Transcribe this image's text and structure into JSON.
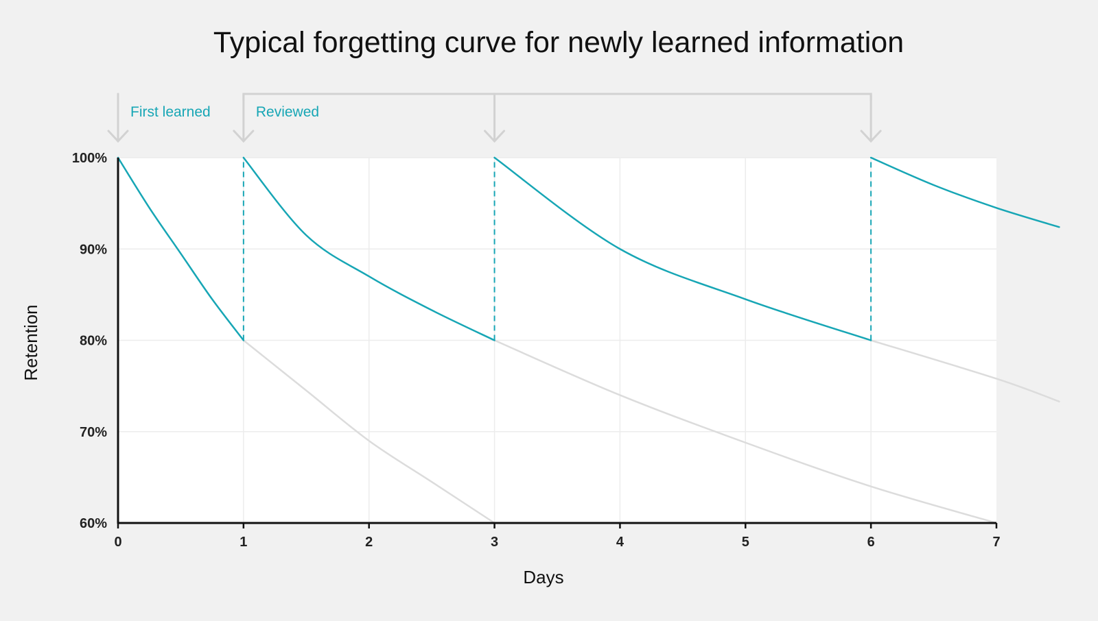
{
  "chart_data": {
    "type": "line",
    "title": "Typical forgetting curve for newly learned information",
    "xlabel": "Days",
    "ylabel": "Retention",
    "xlim": [
      0,
      7
    ],
    "ylim": [
      60,
      100
    ],
    "x_ticks": [
      "0",
      "1",
      "2",
      "3",
      "4",
      "5",
      "6",
      "7"
    ],
    "y_ticks": [
      "60%",
      "70%",
      "80%",
      "90%",
      "100%"
    ],
    "grid": true,
    "annotations": [
      {
        "text": "First learned",
        "x": 0
      },
      {
        "text": "Reviewed",
        "x": 1
      }
    ],
    "review_days": [
      1,
      3,
      6
    ],
    "series": [
      {
        "role": "retained",
        "color": "#17a6b5",
        "segments": [
          {
            "x": [
              0,
              0.25,
              0.5,
              0.75,
              1.0
            ],
            "y": [
              100,
              94.5,
              89.5,
              84.5,
              80
            ]
          },
          {
            "x": [
              1,
              1.5,
              2,
              2.5,
              3.0
            ],
            "y": [
              100,
              91.5,
              87,
              83.3,
              80
            ]
          },
          {
            "x": [
              3,
              4,
              5,
              6
            ],
            "y": [
              100,
              90,
              84.5,
              80
            ]
          },
          {
            "x": [
              6,
              6.5,
              7,
              7.5
            ],
            "y": [
              100,
              97,
              94.5,
              92.4
            ]
          }
        ]
      },
      {
        "role": "without review",
        "color": "#dcdcdc",
        "segments": [
          {
            "x": [
              1,
              1.5,
              2,
              2.5,
              3
            ],
            "y": [
              80,
              74.5,
              69,
              64.5,
              60
            ]
          },
          {
            "x": [
              3,
              4,
              5,
              6,
              7
            ],
            "y": [
              80,
              74,
              68.8,
              64,
              60
            ]
          },
          {
            "x": [
              6,
              7,
              7.5
            ],
            "y": [
              80,
              75.8,
              73.3
            ]
          }
        ]
      }
    ]
  }
}
